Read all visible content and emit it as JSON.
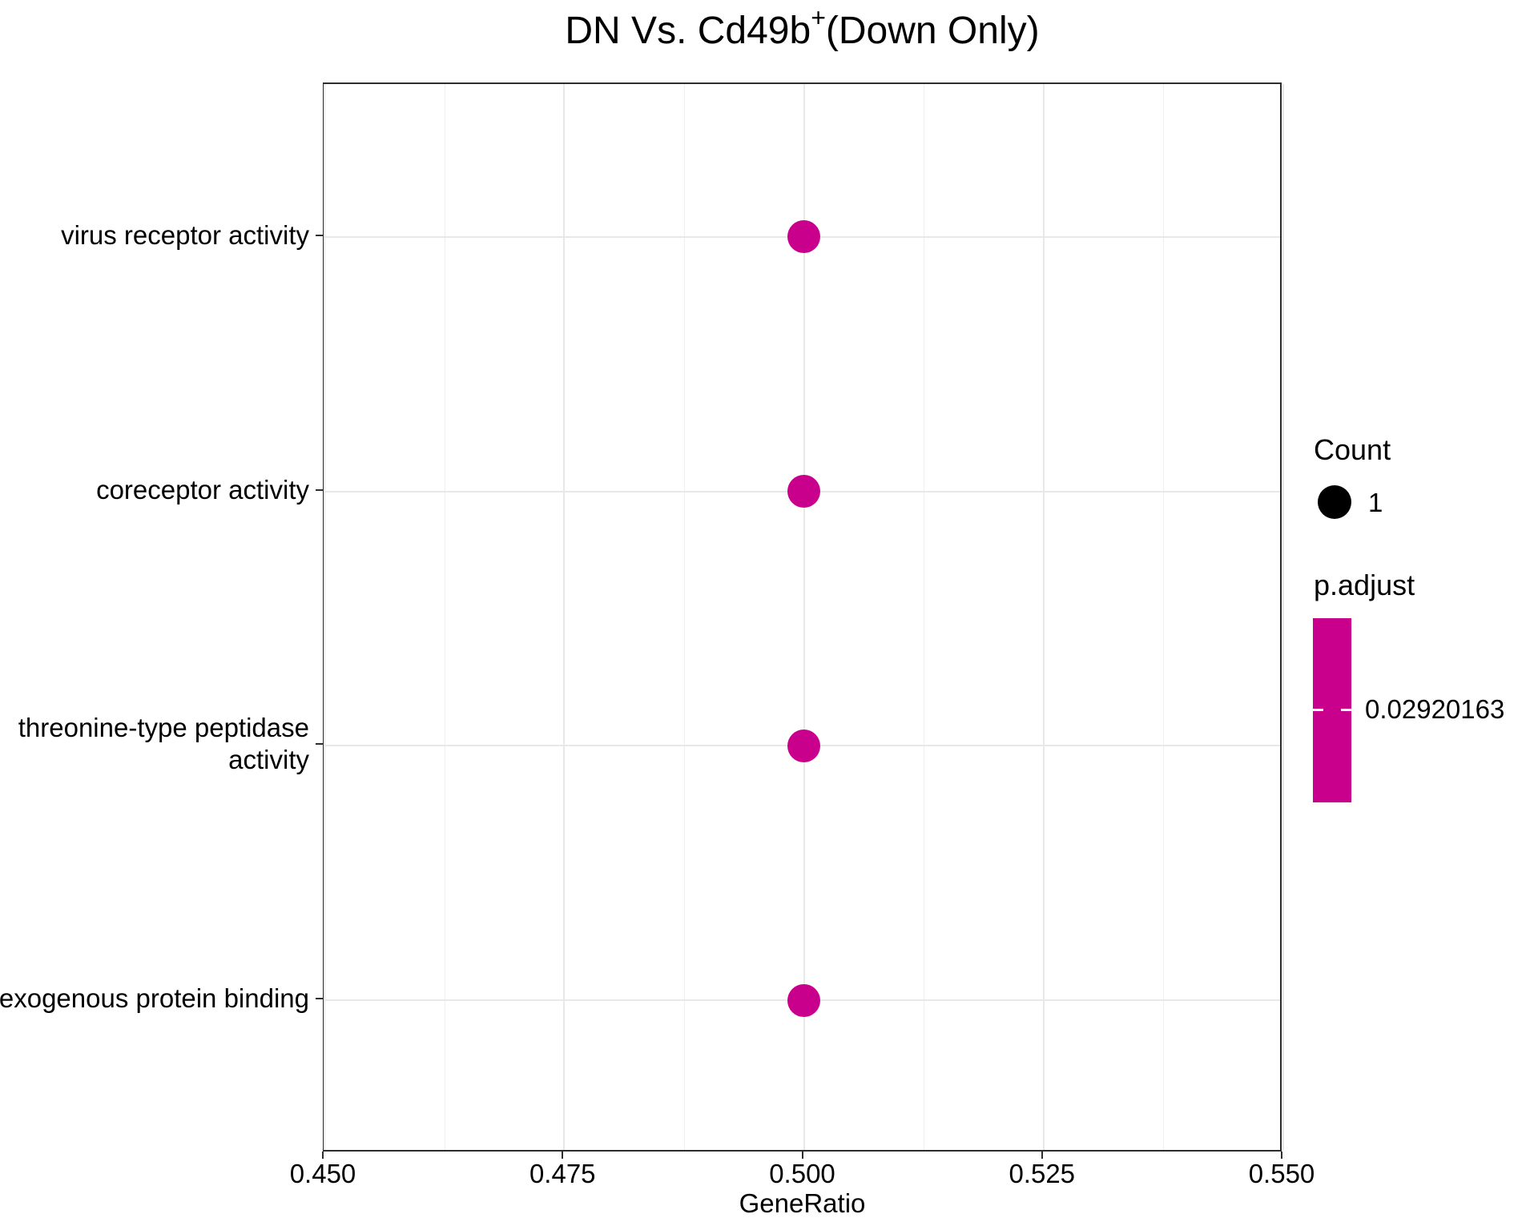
{
  "title": {
    "prefix": "DN Vs. Cd49b",
    "superscript": "+",
    "suffix": "(Down Only)"
  },
  "legend": {
    "count": {
      "title": "Count",
      "items": [
        {
          "label": "1",
          "size": 1
        }
      ]
    },
    "p_adjust": {
      "title": "p.adjust",
      "tick_label": "0.02920163",
      "value": 0.02920163
    }
  },
  "chart_data": {
    "type": "scatter",
    "subtype": "enrichment-dotplot",
    "title": "DN Vs. Cd49b+(Down Only)",
    "xlabel": "GeneRatio",
    "ylabel": "",
    "xlim": [
      0.45,
      0.55
    ],
    "x_ticks": [
      0.45,
      0.475,
      0.5,
      0.525,
      0.55
    ],
    "x_tick_labels": [
      "0.450",
      "0.475",
      "0.500",
      "0.525",
      "0.550"
    ],
    "categories": [
      "virus receptor activity",
      "coreceptor activity",
      "threonine-type peptidase activity",
      "exogenous protein binding"
    ],
    "category_label_lines": [
      [
        "virus receptor activity"
      ],
      [
        "coreceptor activity"
      ],
      [
        "threonine-type peptidase",
        "activity"
      ],
      [
        "exogenous protein binding"
      ]
    ],
    "points": [
      {
        "category": "virus receptor activity",
        "gene_ratio": 0.5,
        "count": 1,
        "p_adjust": 0.02920163
      },
      {
        "category": "coreceptor activity",
        "gene_ratio": 0.5,
        "count": 1,
        "p_adjust": 0.02920163
      },
      {
        "category": "threonine-type peptidase activity",
        "gene_ratio": 0.5,
        "count": 1,
        "p_adjust": 0.02920163
      },
      {
        "category": "exogenous protein binding",
        "gene_ratio": 0.5,
        "count": 1,
        "p_adjust": 0.02920163
      }
    ],
    "grid": true,
    "legend_position": "right",
    "colors": {
      "dot": "#C8008C",
      "colorbar": "#C8008C",
      "legend_count_dot": "#000000",
      "grid_major": "#E8E8E8",
      "grid_minor": "#EFEFEF",
      "panel_border": "#2D2D2D",
      "text": "#000000"
    }
  }
}
